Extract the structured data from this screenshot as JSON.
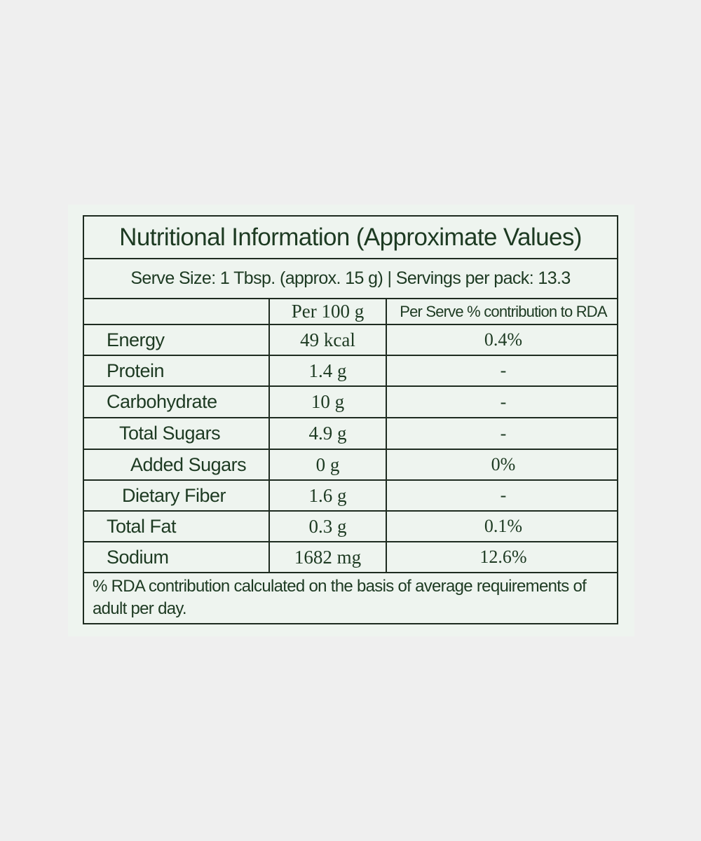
{
  "title": "Nutritional Information (Approximate Values)",
  "serve_size": "Serve Size: 1 Tbsp. (approx. 15 g) | Servings per pack: 13.3",
  "table": {
    "header": {
      "per_100g": "Per 100 g",
      "rda": "Per Serve % contribution to RDA"
    },
    "rows": [
      [
        "Energy",
        "49 kcal",
        "0.4%"
      ],
      [
        "Protein",
        "1.4 g",
        "-"
      ],
      [
        "Carbohydrate",
        "10 g",
        "-"
      ],
      [
        "Total Sugars",
        "4.9 g",
        "-"
      ],
      [
        "Added Sugars",
        "0 g",
        "0%"
      ],
      [
        "Dietary Fiber",
        "1.6 g",
        "-"
      ],
      [
        "Total Fat",
        "0.3 g",
        "0.1%"
      ],
      [
        "Sodium",
        "1682 mg",
        "12.6%"
      ]
    ]
  },
  "footnote": "% RDA contribution calculated on the basis of average requirements of adult per day."
}
